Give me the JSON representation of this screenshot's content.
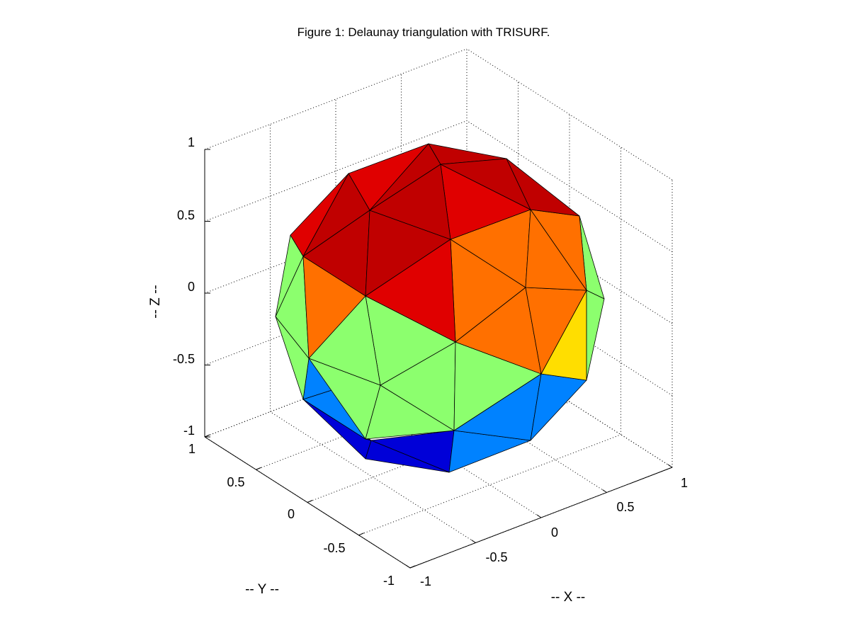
{
  "chart_data": {
    "type": "trisurf",
    "title": "Figure 1: Delaunay triangulation with TRISURF.",
    "xlabel": "-- X --",
    "ylabel": "-- Y --",
    "zlabel": "-- Z --",
    "xlim": [
      -1,
      1
    ],
    "ylim": [
      -1,
      1
    ],
    "zlim": [
      -1,
      1
    ],
    "grid": true,
    "xticks": [
      "-1",
      "-0.5",
      "0",
      "0.5",
      "1"
    ],
    "yticks": [
      "-1",
      "-0.5",
      "0",
      "0.5",
      "1"
    ],
    "zticks": [
      "-1",
      "-0.5",
      "0",
      "0.5",
      "1"
    ],
    "surface": "unit sphere",
    "colormap": [
      "#0000d8",
      "#0082ff",
      "#8cff6e",
      "#ffde00",
      "#ff7000",
      "#e00000",
      "#c00000"
    ]
  }
}
